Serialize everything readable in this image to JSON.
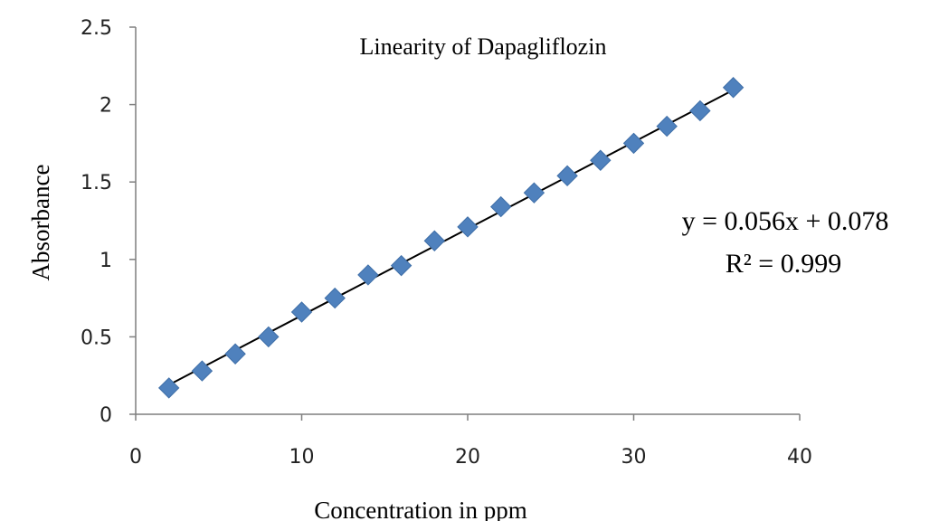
{
  "chart_data": {
    "type": "scatter",
    "title": "Linearity  of Dapagliflozin",
    "xlabel": "Concentration in ppm",
    "ylabel": "Absorbance",
    "xlim": [
      0,
      40
    ],
    "ylim": [
      0,
      2.5
    ],
    "xticks": [
      "0",
      "10",
      "20",
      "30",
      "40"
    ],
    "yticks": [
      "0",
      "0.5",
      "1",
      "1.5",
      "2",
      "2.5"
    ],
    "grid": false,
    "legend": "none",
    "marker": "diamond",
    "marker_color": "#4f81bd",
    "trendline_color": "#000000",
    "series": [
      {
        "x": [
          2,
          4,
          6,
          8,
          10,
          12,
          14,
          16,
          18,
          20,
          22,
          24,
          26,
          28,
          30,
          32,
          34,
          36
        ],
        "y": [
          0.17,
          0.28,
          0.39,
          0.5,
          0.66,
          0.75,
          0.9,
          0.96,
          1.12,
          1.21,
          1.34,
          1.43,
          1.54,
          1.64,
          1.75,
          1.86,
          1.96,
          2.11
        ]
      }
    ],
    "trendline": {
      "slope": 0.056,
      "intercept": 0.078,
      "x_range": [
        2,
        36
      ]
    },
    "annotations": {
      "equation": "y = 0.056x + 0.078",
      "r2": "R² = 0.999"
    }
  }
}
